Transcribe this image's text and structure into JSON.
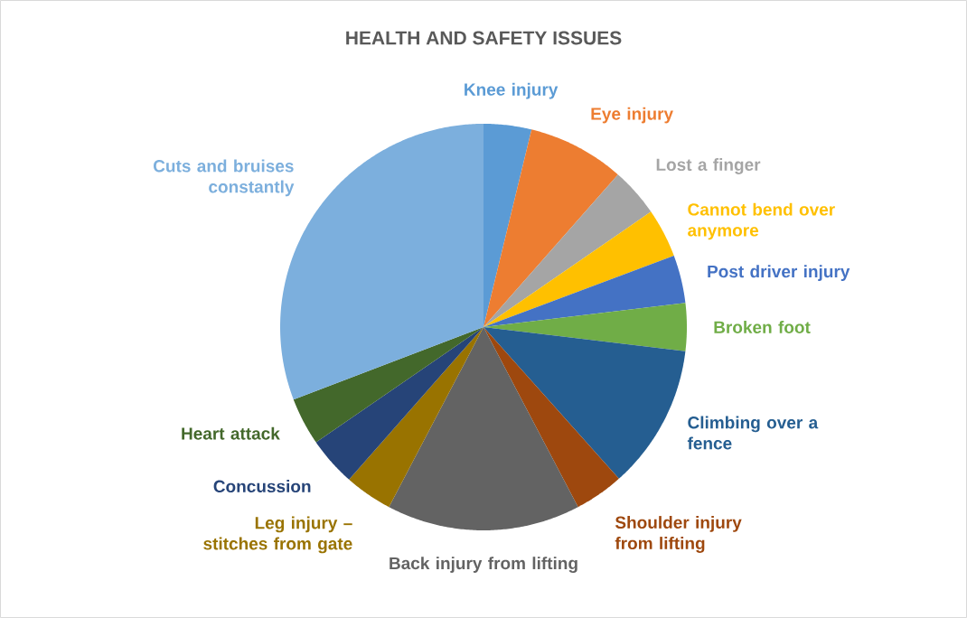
{
  "chart_data": {
    "type": "pie",
    "title": "HEALTH AND SAFETY ISSUES",
    "categories": [
      "Knee injury",
      "Eye injury",
      "Lost a finger",
      "Cannot bend over anymore",
      "Post driver injury",
      "Broken foot",
      "Climbing over a fence",
      "Shoulder injury from lifting",
      "Back injury from lifting",
      "Leg injury – stitches from gate",
      "Concussion",
      "Heart attack",
      "Cuts and bruises constantly"
    ],
    "values": [
      3.8,
      7.7,
      3.9,
      3.9,
      3.8,
      3.8,
      11.5,
      3.9,
      15.4,
      3.8,
      3.9,
      3.8,
      30.8
    ],
    "colors": [
      "#5b9bd5",
      "#ed7d31",
      "#a5a5a5",
      "#ffc000",
      "#4472c4",
      "#70ad47",
      "#255e91",
      "#9e480e",
      "#636363",
      "#997300",
      "#264478",
      "#43682b",
      "#7cafdd"
    ]
  }
}
